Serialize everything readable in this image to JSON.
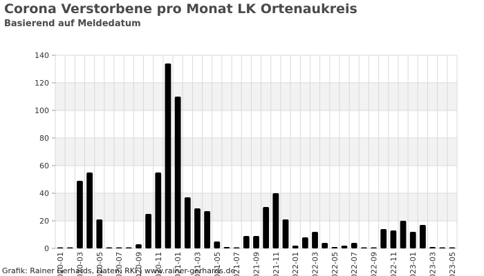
{
  "title": "Corona Verstorbene pro Monat LK Ortenaukreis",
  "subtitle": "Basierend auf Meldedatum",
  "credit": "Grafik: Rainer Gerhards, Daten: RKI | www.rainer-gerhards.de",
  "colors": {
    "bar": "#000000",
    "band": "#f2f2f2",
    "grid": "#d9d9d9",
    "text": "#4a4a4a"
  },
  "chart_data": {
    "type": "bar",
    "ylim": [
      0,
      140
    ],
    "yticks": [
      0,
      20,
      40,
      60,
      80,
      100,
      120,
      140
    ],
    "grid": true,
    "categories": [
      "2020-01",
      "2020-02",
      "2020-03",
      "2020-04",
      "2020-05",
      "2020-06",
      "2020-07",
      "2020-08",
      "2020-09",
      "2020-10",
      "2020-11",
      "2020-12",
      "2021-01",
      "2021-02",
      "2021-03",
      "2021-04",
      "2021-05",
      "2021-06",
      "2021-07",
      "2021-08",
      "2021-09",
      "2021-10",
      "2021-11",
      "2021-12",
      "2022-01",
      "2022-02",
      "2022-03",
      "2022-04",
      "2022-05",
      "2022-06",
      "2022-07",
      "2022-08",
      "2022-09",
      "2022-10",
      "2022-11",
      "2022-12",
      "2023-01",
      "2023-02",
      "2023-03",
      "2023-04",
      "2023-05"
    ],
    "values": [
      0,
      0,
      49,
      55,
      21,
      0,
      0,
      0,
      3,
      25,
      55,
      134,
      110,
      37,
      29,
      27,
      5,
      1,
      0,
      9,
      9,
      30,
      40,
      21,
      2,
      8,
      12,
      4,
      1,
      2,
      4,
      0,
      0,
      14,
      13,
      20,
      12,
      17,
      1,
      0,
      0
    ],
    "xtick_labels": [
      "2020-01",
      "2020-03",
      "2020-05",
      "2020-07",
      "2020-09",
      "2020-11",
      "2021-01",
      "2021-03",
      "2021-05",
      "2021-07",
      "2021-09",
      "2021-11",
      "2022-01",
      "2022-03",
      "2022-05",
      "2022-07",
      "2022-09",
      "2022-11",
      "2023-01",
      "2023-03",
      "2023-05"
    ]
  }
}
